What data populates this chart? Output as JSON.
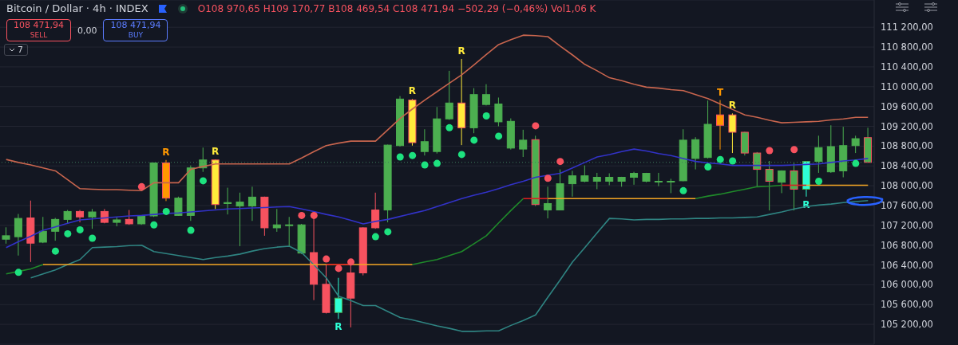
{
  "chart_data": {
    "type": "candlestick",
    "title": "Bitcoin / Dollar · 4h · INDEX",
    "subtitle": "O108 970,65 H109 170,77 B108 469,54 C108 471,94 −502,29 (−0,46%) Vol1,06 K",
    "annotations": [
      "108 471,94",
      "SELL",
      "0,00",
      "108 471,94",
      "BUY",
      "7"
    ],
    "categories": [
      null,
      null,
      null,
      null,
      null,
      null,
      null,
      null,
      null,
      null,
      null,
      null,
      null,
      null,
      null,
      null,
      null,
      null,
      null,
      null,
      null,
      null,
      null,
      null,
      null,
      null,
      null,
      null,
      null,
      null,
      null,
      null,
      null,
      null,
      null,
      null,
      null,
      null,
      null,
      null,
      null,
      null,
      null,
      null,
      null,
      null,
      null,
      null,
      null,
      null,
      null,
      null,
      null,
      null,
      null,
      null,
      null,
      null,
      null,
      null,
      null,
      null,
      null,
      null,
      null,
      null,
      null,
      null,
      null,
      null,
      null
    ],
    "ohlc": [
      [
        106920,
        107160,
        106830,
        106990
      ],
      [
        106970,
        107430,
        106590,
        107340
      ],
      [
        107350,
        107700,
        106460,
        106840
      ],
      [
        106860,
        107370,
        106840,
        107080
      ],
      [
        107080,
        107350,
        106890,
        107320
      ],
      [
        107320,
        107510,
        107230,
        107480
      ],
      [
        107480,
        107510,
        107260,
        107370
      ],
      [
        107370,
        107530,
        107130,
        107470
      ],
      [
        107480,
        107530,
        107240,
        107260
      ],
      [
        107260,
        107370,
        107180,
        107310
      ],
      [
        107320,
        107510,
        107210,
        107230
      ],
      [
        107230,
        107400,
        107210,
        107390
      ],
      [
        107390,
        108470,
        107370,
        108460
      ],
      [
        108460,
        108520,
        107690,
        107750
      ],
      [
        107400,
        107780,
        107390,
        107750
      ],
      [
        107400,
        108410,
        107290,
        108360
      ],
      [
        108360,
        108770,
        108280,
        108520
      ],
      [
        108520,
        108530,
        107530,
        107620
      ],
      [
        107640,
        107960,
        107420,
        107660
      ],
      [
        107590,
        107860,
        106780,
        107670
      ],
      [
        107590,
        107980,
        107290,
        107770
      ],
      [
        107770,
        107780,
        106990,
        107150
      ],
      [
        107150,
        107530,
        107070,
        107210
      ],
      [
        107200,
        107370,
        106780,
        107210
      ],
      [
        106640,
        107230,
        106620,
        107210
      ],
      [
        106650,
        107370,
        105690,
        106010
      ],
      [
        106010,
        106410,
        105420,
        105440
      ],
      [
        105440,
        106140,
        105310,
        105730
      ],
      [
        106240,
        106410,
        105140,
        105730
      ],
      [
        107150,
        107160,
        106190,
        106240
      ],
      [
        107510,
        107860,
        107130,
        107150
      ],
      [
        107510,
        108830,
        107260,
        108820
      ],
      [
        108810,
        109810,
        108790,
        109750
      ],
      [
        109730,
        109750,
        108810,
        108870
      ],
      [
        108690,
        109140,
        108610,
        108890
      ],
      [
        108690,
        109590,
        108650,
        109350
      ],
      [
        109350,
        110320,
        109330,
        109670
      ],
      [
        109670,
        110560,
        108820,
        109170
      ],
      [
        109170,
        109970,
        109060,
        109840
      ],
      [
        109640,
        110050,
        109620,
        109840
      ],
      [
        109290,
        109780,
        109200,
        109650
      ],
      [
        108760,
        109360,
        108730,
        109300
      ],
      [
        108740,
        109130,
        108580,
        108920
      ],
      [
        108930,
        109010,
        107590,
        107620
      ],
      [
        107510,
        107980,
        107340,
        107640
      ],
      [
        107510,
        108330,
        107510,
        108040
      ],
      [
        108040,
        108300,
        107780,
        108200
      ],
      [
        108090,
        108410,
        108070,
        108200
      ],
      [
        108090,
        108260,
        107930,
        108170
      ],
      [
        108090,
        108250,
        108010,
        108170
      ],
      [
        108090,
        108180,
        107980,
        108170
      ],
      [
        108170,
        108280,
        108020,
        108250
      ],
      [
        108090,
        108260,
        108070,
        108250
      ],
      [
        108080,
        108260,
        107990,
        108090
      ],
      [
        108080,
        108140,
        107850,
        108090
      ],
      [
        108100,
        109140,
        108090,
        108920
      ],
      [
        108550,
        108980,
        108330,
        108930
      ],
      [
        108570,
        109720,
        108550,
        109240
      ],
      [
        109430,
        109730,
        108730,
        109220
      ],
      [
        109430,
        109460,
        108660,
        109080
      ],
      [
        109080,
        109090,
        108610,
        108660
      ],
      [
        108660,
        108680,
        107980,
        108330
      ],
      [
        108330,
        108500,
        107500,
        108090
      ],
      [
        108070,
        108310,
        107850,
        108300
      ],
      [
        108300,
        108460,
        107500,
        107930
      ],
      [
        107930,
        108490,
        107780,
        108490
      ],
      [
        108490,
        109010,
        108260,
        108770
      ],
      [
        108280,
        109220,
        108260,
        108790
      ],
      [
        108300,
        109190,
        108170,
        108810
      ],
      [
        108810,
        109010,
        108660,
        108950
      ],
      [
        108970.65,
        109170.77,
        108469.54,
        108471.94
      ]
    ],
    "colors": [
      "#4caf50",
      "#4caf50",
      "#f7525f",
      "#4caf50",
      "#4caf50",
      "#4caf50",
      "#f7525f",
      "#4caf50",
      "#f7525f",
      "#4caf50",
      "#f7525f",
      "#4caf50",
      "#4caf50",
      "#ff9800",
      "#4caf50",
      "#4caf50",
      "#4caf50",
      "#ffeb3b",
      "#4caf50",
      "#4caf50",
      "#4caf50",
      "#f7525f",
      "#4caf50",
      "#4caf50",
      "#4caf50",
      "#f7525f",
      "#f7525f",
      "#2effd5",
      "#f7525f",
      "#f7525f",
      "#f7525f",
      "#4caf50",
      "#4caf50",
      "#ffeb3b",
      "#4caf50",
      "#4caf50",
      "#4caf50",
      "#ffeb3b",
      "#4caf50",
      "#4caf50",
      "#4caf50",
      "#4caf50",
      "#4caf50",
      "#4caf50",
      "#4caf50",
      "#4caf50",
      "#4caf50",
      "#4caf50",
      "#4caf50",
      "#4caf50",
      "#4caf50",
      "#4caf50",
      "#4caf50",
      "#4caf50",
      "#4caf50",
      "#4caf50",
      "#4caf50",
      "#4caf50",
      "#ff9800",
      "#ffeb3b",
      "#4caf50",
      "#4caf50",
      "#4caf50",
      "#4caf50",
      "#4caf50",
      "#2effd5",
      "#4caf50",
      "#4caf50",
      "#4caf50",
      "#4caf50",
      "#4caf50"
    ],
    "value_labels": [
      null,
      null,
      null,
      null,
      null,
      null,
      null,
      null,
      null,
      null,
      null,
      null,
      null,
      "R",
      null,
      null,
      null,
      "R",
      null,
      null,
      null,
      null,
      null,
      null,
      null,
      null,
      null,
      "R",
      null,
      null,
      null,
      null,
      null,
      "R",
      null,
      null,
      null,
      "R",
      null,
      null,
      null,
      null,
      null,
      null,
      null,
      null,
      null,
      null,
      null,
      null,
      null,
      null,
      null,
      null,
      null,
      null,
      null,
      null,
      "T",
      "R",
      null,
      null,
      null,
      null,
      null,
      "R",
      null,
      null,
      null,
      null,
      null
    ],
    "ylim": [
      104800,
      111750
    ],
    "yticks": [
      {
        "value": 105200,
        "label": "105 200,00"
      },
      {
        "value": 105600,
        "label": "105 600,00"
      },
      {
        "value": 106000,
        "label": "106 000,00"
      },
      {
        "value": 106400,
        "label": "106 400,00"
      },
      {
        "value": 106800,
        "label": "106 800,00"
      },
      {
        "value": 107200,
        "label": "107 200,00"
      },
      {
        "value": 107600,
        "label": "107 600,00"
      },
      {
        "value": 108000,
        "label": "108 000,00"
      },
      {
        "value": 108400,
        "label": "108 400,00"
      },
      {
        "value": 108800,
        "label": "108 800,00"
      },
      {
        "value": 109200,
        "label": "109 200,00"
      },
      {
        "value": 109600,
        "label": "109 600,00"
      },
      {
        "value": 110000,
        "label": "110 000,00"
      },
      {
        "value": 110400,
        "label": "110 400,00"
      },
      {
        "value": 110800,
        "label": "110 800,00"
      },
      {
        "value": 111200,
        "label": "111 200,00"
      }
    ],
    "tick_labels": "y",
    "grid": "y",
    "ref_lines": [
      {
        "axis": "y",
        "value": 108471.94,
        "color": "#3f7a5c",
        "line_style": "dotted"
      }
    ],
    "series": [
      {
        "type": "line",
        "color": "#c8654e",
        "values": [
          108530,
          108470,
          108420,
          108360,
          108300,
          108120,
          107940,
          107930,
          107920,
          107920,
          107910,
          107900,
          108060,
          108060,
          108060,
          108330,
          108390,
          108440,
          108440,
          108440,
          108440,
          108440,
          108440,
          108440,
          108560,
          108690,
          108810,
          108860,
          108900,
          108900,
          108900,
          109130,
          109360,
          109550,
          109730,
          109900,
          110070,
          110240,
          110440,
          110650,
          110850,
          110950,
          111040,
          111030,
          111010,
          110820,
          110640,
          110450,
          110320,
          110180,
          110120,
          110050,
          109990,
          109970,
          109940,
          109920,
          109840,
          109760,
          109650,
          109540,
          109430,
          109380,
          109320,
          109270,
          109280,
          109290,
          109300,
          109330,
          109350,
          109380,
          109380
        ]
      },
      {
        "type": "line",
        "color": "#3232c8",
        "values": [
          106750,
          106870,
          106980,
          107100,
          107170,
          107240,
          107310,
          107330,
          107350,
          107370,
          107390,
          107400,
          107420,
          107440,
          107450,
          107470,
          107490,
          107510,
          107530,
          107540,
          107550,
          107560,
          107570,
          107580,
          107530,
          107480,
          107420,
          107370,
          107300,
          107230,
          107280,
          107320,
          107380,
          107440,
          107500,
          107580,
          107660,
          107740,
          107810,
          107870,
          107940,
          108020,
          108090,
          108170,
          108210,
          108250,
          108360,
          108470,
          108580,
          108630,
          108690,
          108740,
          108700,
          108650,
          108610,
          108550,
          108490,
          108460,
          108440,
          108410,
          108410,
          108410,
          108410,
          108410,
          108420,
          108430,
          108440,
          108470,
          108500,
          108520,
          108550
        ]
      },
      {
        "type": "line",
        "color": "#2f8482",
        "values": [
          null,
          null,
          106140,
          106220,
          106300,
          106410,
          106510,
          106750,
          106760,
          106770,
          106790,
          106800,
          106670,
          106630,
          106590,
          106550,
          106510,
          106550,
          106580,
          106620,
          106680,
          106730,
          106760,
          106780,
          106650,
          106400,
          106140,
          105770,
          105680,
          105580,
          105580,
          105460,
          105340,
          105290,
          105230,
          105170,
          105120,
          105060,
          105060,
          105070,
          105070,
          105180,
          105280,
          105390,
          105750,
          106100,
          106460,
          106750,
          107050,
          107340,
          107330,
          107310,
          107320,
          107320,
          107330,
          107330,
          107340,
          107340,
          107350,
          107350,
          107360,
          107370,
          107420,
          107470,
          107530,
          107580,
          107610,
          107630,
          107660,
          107680,
          107700
        ]
      },
      {
        "type": "line",
        "color": "#1f8a2a",
        "values": [
          106220,
          106270,
          106320,
          106410,
          null,
          null,
          null,
          null,
          null,
          null,
          null,
          null,
          null,
          null,
          null,
          null,
          null,
          null,
          null,
          null,
          null,
          null,
          null,
          null,
          null,
          null,
          null,
          null,
          null,
          null,
          null,
          null,
          null,
          null,
          null,
          null,
          null,
          null,
          null,
          null,
          null,
          null,
          null,
          null,
          null,
          null,
          null,
          null,
          null,
          null,
          null,
          null,
          null,
          null,
          null,
          null,
          null,
          null,
          null,
          null,
          null,
          null,
          null,
          null,
          null,
          null,
          null,
          null,
          null,
          null,
          null
        ]
      },
      {
        "type": "line",
        "color": "#f5a623",
        "values": [
          null,
          null,
          null,
          106410,
          106410,
          106410,
          106410,
          106410,
          106410,
          106410,
          106410,
          106410,
          106410,
          106410,
          106410,
          106410,
          106410,
          106410,
          106410,
          106410,
          106410,
          106410,
          106410,
          106410,
          106410,
          106410,
          106410,
          106410,
          106410,
          106410,
          106410,
          106410,
          106410,
          106410,
          null,
          null,
          null,
          null,
          null,
          null,
          null,
          null,
          null,
          null,
          null,
          null,
          null,
          null,
          null,
          null,
          null,
          null,
          null,
          null,
          null,
          null,
          null,
          null,
          null,
          null,
          null,
          null,
          null,
          null,
          null,
          null,
          null,
          null,
          null,
          null,
          null
        ]
      },
      {
        "type": "line",
        "color": "#d92020",
        "values": [
          null,
          null,
          null,
          null,
          null,
          null,
          null,
          null,
          null,
          null,
          null,
          null,
          null,
          null,
          null,
          null,
          null,
          null,
          null,
          null,
          null,
          null,
          null,
          null,
          null,
          null,
          106410,
          106410,
          106410,
          null,
          null,
          null,
          null,
          null,
          null,
          null,
          null,
          null,
          null,
          null,
          null,
          null,
          null,
          null,
          null,
          null,
          null,
          null,
          null,
          null,
          null,
          null,
          null,
          null,
          null,
          null,
          null,
          null,
          null,
          null,
          null,
          null,
          null,
          null,
          null,
          null,
          null,
          null,
          null,
          null,
          null
        ]
      },
      {
        "type": "line",
        "color": "#1f8a2a",
        "values": [
          null,
          null,
          null,
          null,
          null,
          null,
          null,
          null,
          null,
          null,
          null,
          null,
          null,
          null,
          null,
          null,
          null,
          null,
          null,
          null,
          null,
          null,
          null,
          null,
          null,
          null,
          null,
          null,
          null,
          null,
          null,
          null,
          null,
          106410,
          106460,
          106510,
          106590,
          106670,
          106830,
          106990,
          107250,
          107500,
          107740,
          null,
          null,
          null,
          null,
          null,
          null,
          null,
          null,
          null,
          null,
          null,
          null,
          null,
          null,
          null,
          null,
          null,
          null,
          null,
          null,
          null,
          null,
          null,
          null,
          null,
          null,
          null,
          null
        ]
      },
      {
        "type": "line",
        "color": "#d92020",
        "values": [
          null,
          null,
          null,
          null,
          null,
          null,
          null,
          null,
          null,
          null,
          null,
          null,
          null,
          null,
          null,
          null,
          null,
          null,
          null,
          null,
          null,
          null,
          null,
          null,
          null,
          null,
          null,
          null,
          null,
          null,
          null,
          null,
          null,
          null,
          null,
          null,
          null,
          null,
          null,
          null,
          null,
          null,
          107740,
          107740,
          107740,
          null,
          null,
          null,
          null,
          null,
          null,
          null,
          null,
          null,
          null,
          null,
          null,
          null,
          null,
          null,
          null,
          null,
          null,
          null,
          null,
          null,
          null,
          null,
          null,
          null,
          null
        ]
      },
      {
        "type": "line",
        "color": "#f5a623",
        "values": [
          null,
          null,
          null,
          null,
          null,
          null,
          null,
          null,
          null,
          null,
          null,
          null,
          null,
          null,
          null,
          null,
          null,
          null,
          null,
          null,
          null,
          null,
          null,
          null,
          null,
          null,
          null,
          null,
          null,
          null,
          null,
          null,
          null,
          null,
          null,
          null,
          null,
          null,
          null,
          null,
          null,
          null,
          null,
          null,
          107740,
          107740,
          107740,
          107740,
          107740,
          107740,
          107740,
          107740,
          107740,
          107740,
          107740,
          107740,
          107740,
          null,
          null,
          null,
          null,
          null,
          null,
          null,
          null,
          null,
          null,
          null,
          null,
          null,
          null
        ]
      },
      {
        "type": "line",
        "color": "#1f8a2a",
        "values": [
          null,
          null,
          null,
          null,
          null,
          null,
          null,
          null,
          null,
          null,
          null,
          null,
          null,
          null,
          null,
          null,
          null,
          null,
          null,
          null,
          null,
          null,
          null,
          null,
          null,
          null,
          null,
          null,
          null,
          null,
          null,
          null,
          null,
          null,
          null,
          null,
          null,
          null,
          null,
          null,
          null,
          null,
          null,
          null,
          null,
          null,
          null,
          null,
          null,
          null,
          null,
          null,
          null,
          null,
          null,
          null,
          107740,
          107790,
          107830,
          107880,
          107930,
          107980,
          107990,
          108010,
          null,
          null,
          null,
          null,
          null,
          null,
          null
        ]
      },
      {
        "type": "line",
        "color": "#d92020",
        "values": [
          null,
          null,
          null,
          null,
          null,
          null,
          null,
          null,
          null,
          null,
          null,
          null,
          null,
          null,
          null,
          null,
          null,
          null,
          null,
          null,
          null,
          null,
          null,
          null,
          null,
          null,
          null,
          null,
          null,
          null,
          null,
          null,
          null,
          null,
          null,
          null,
          null,
          null,
          null,
          null,
          null,
          null,
          null,
          null,
          null,
          null,
          null,
          null,
          null,
          null,
          null,
          null,
          null,
          null,
          null,
          null,
          null,
          null,
          null,
          null,
          null,
          null,
          null,
          108010,
          108010,
          108010,
          null,
          null,
          null,
          null,
          null
        ]
      },
      {
        "type": "line",
        "color": "#f5a623",
        "values": [
          null,
          null,
          null,
          null,
          null,
          null,
          null,
          null,
          null,
          null,
          null,
          null,
          null,
          null,
          null,
          null,
          null,
          null,
          null,
          null,
          null,
          null,
          null,
          null,
          null,
          null,
          null,
          null,
          null,
          null,
          null,
          null,
          null,
          null,
          null,
          null,
          null,
          null,
          null,
          null,
          null,
          null,
          null,
          null,
          null,
          null,
          null,
          null,
          null,
          null,
          null,
          null,
          null,
          null,
          null,
          null,
          null,
          null,
          null,
          null,
          null,
          null,
          null,
          null,
          null,
          108010,
          108010,
          108010,
          108010,
          108010,
          108010
        ]
      },
      {
        "type": "scatter",
        "color": "#1de27f",
        "marker": "circle",
        "values": [
          null,
          106250,
          null,
          null,
          106680,
          107030,
          107110,
          106940,
          null,
          null,
          null,
          null,
          107210,
          107480,
          null,
          107100,
          108100,
          null,
          null,
          null,
          null,
          null,
          null,
          null,
          null,
          null,
          null,
          null,
          null,
          null,
          106970,
          107070,
          108580,
          108610,
          108420,
          108450,
          109170,
          108630,
          108920,
          109410,
          109000,
          null,
          null,
          null,
          null,
          null,
          null,
          null,
          null,
          null,
          null,
          null,
          null,
          null,
          null,
          107900,
          null,
          108380,
          108530,
          108500,
          null,
          null,
          null,
          null,
          null,
          null,
          108090,
          null,
          null,
          108450,
          null
        ]
      },
      {
        "type": "scatter",
        "color": "#f7525f",
        "marker": "circle",
        "values": [
          null,
          null,
          null,
          null,
          null,
          null,
          null,
          null,
          null,
          null,
          null,
          107980,
          null,
          null,
          null,
          null,
          null,
          null,
          null,
          null,
          null,
          null,
          null,
          null,
          107400,
          107400,
          106520,
          106330,
          106460,
          null,
          null,
          null,
          null,
          null,
          null,
          null,
          null,
          null,
          null,
          null,
          null,
          null,
          null,
          109210,
          108150,
          108490,
          null,
          null,
          null,
          null,
          null,
          null,
          null,
          null,
          null,
          null,
          null,
          null,
          null,
          null,
          null,
          null,
          108710,
          null,
          108730,
          null,
          null,
          null,
          null,
          null,
          null
        ]
      }
    ]
  }
}
